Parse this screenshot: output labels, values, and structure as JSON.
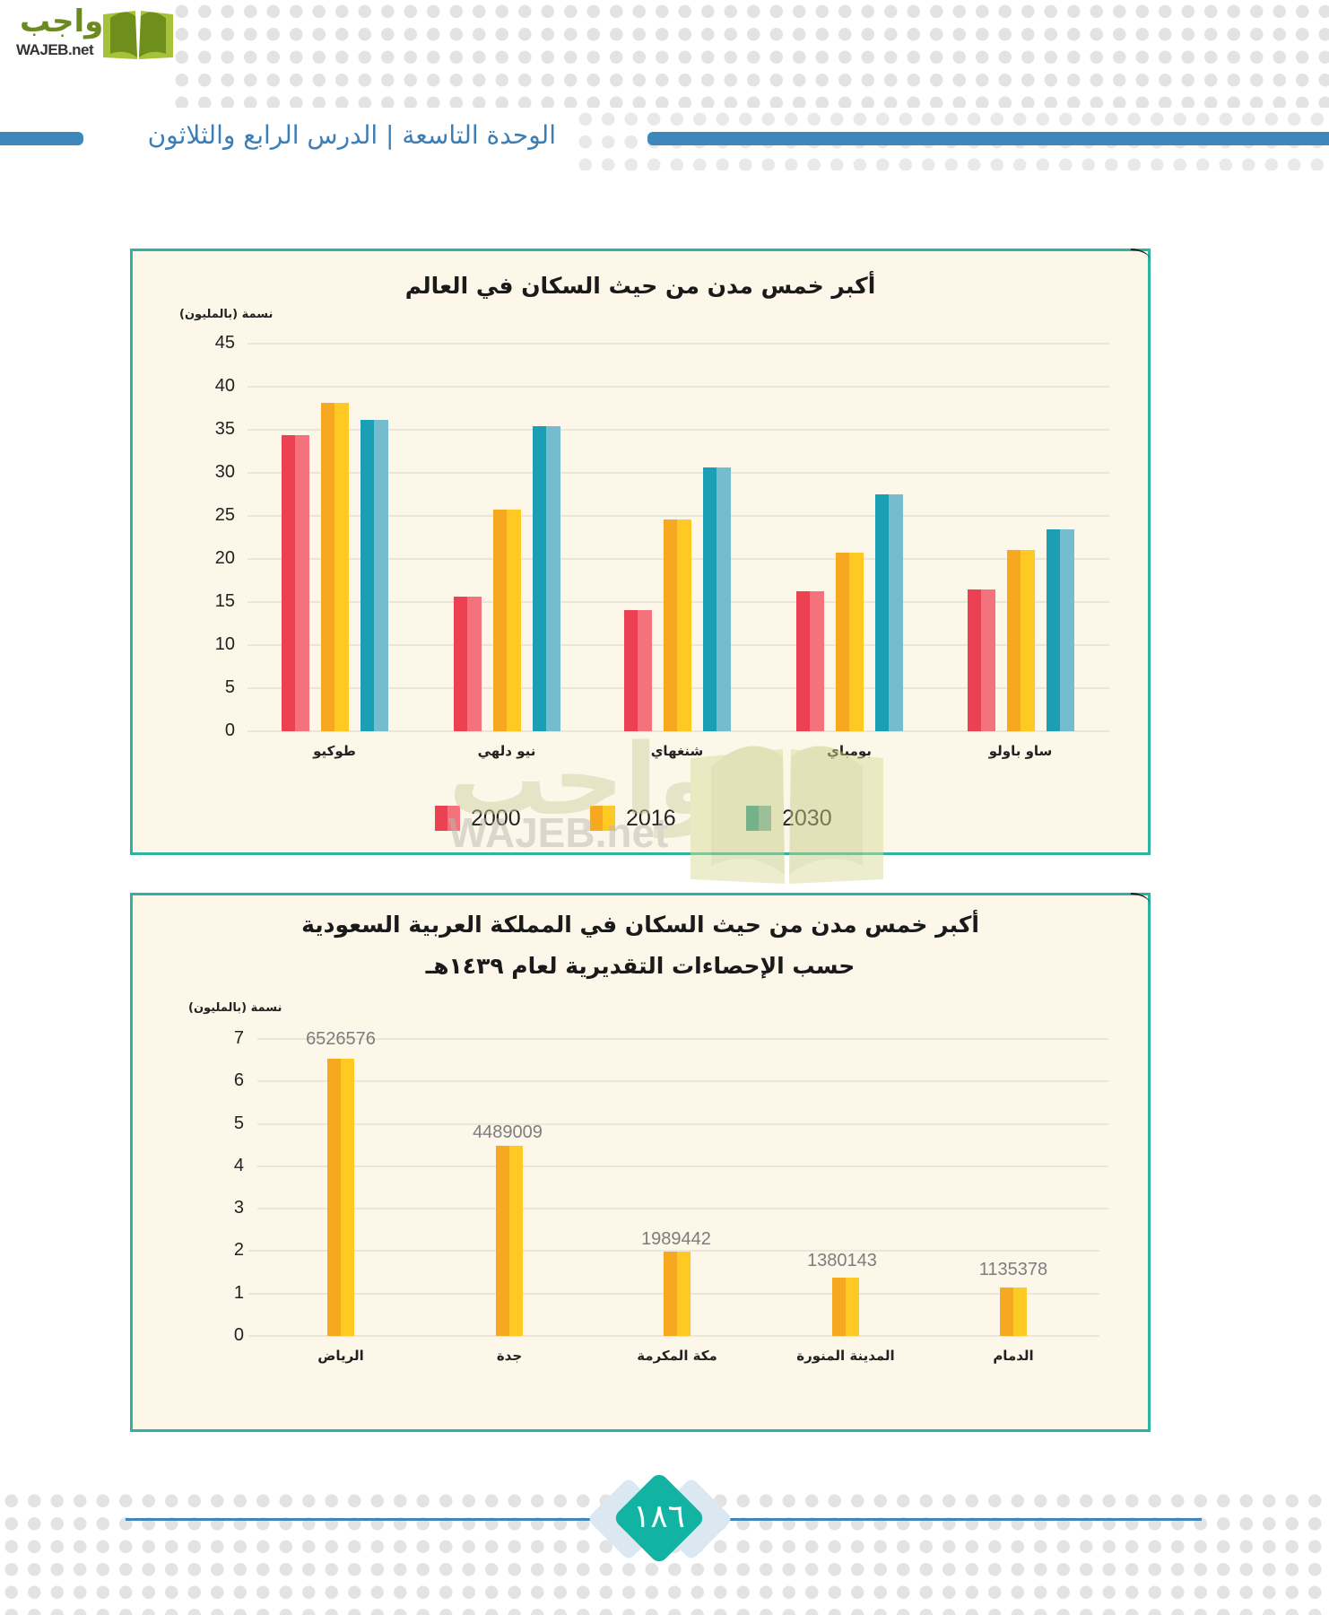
{
  "header": {
    "logo_arabic": "واجب",
    "logo_latin": "WAJEB.net",
    "unit_lesson_title": "الوحدة التاسعة | الدرس الرابع والثلاثون"
  },
  "chart1": {
    "title": "أكبر خمس مدن من حيث السكان في العالم",
    "ylabel": "نسمة (بالمليون)",
    "yticks": [
      "45",
      "40",
      "35",
      "30",
      "25",
      "20",
      "15",
      "10",
      "5",
      "0"
    ],
    "categories": [
      "طوكيو",
      "نيو دلهي",
      "شنغهاي",
      "بومباي",
      "ساو باولو"
    ],
    "legend": [
      "2000",
      "2016",
      "2030"
    ]
  },
  "chart2": {
    "title_line1": "أكبر خمس مدن من حيث السكان في المملكة العربية السعودية",
    "title_line2": "حسب الإحصاءات التقديرية لعام ١٤٣٩هـ",
    "ylabel": "نسمة (بالمليون)",
    "yticks": [
      "7",
      "6",
      "5",
      "4",
      "3",
      "2",
      "1",
      "0"
    ],
    "categories": [
      "الرياض",
      "جدة",
      "مكة المكرمة",
      "المدينة المنورة",
      "الدمام"
    ],
    "value_labels": [
      "6526576",
      "4489009",
      "1989442",
      "1380143",
      "1135378"
    ]
  },
  "watermark": {
    "arabic": "واجب",
    "latin": "WAJEB.net"
  },
  "footer": {
    "page_number": "١٨٦"
  },
  "colors": {
    "series_2000": "#ec4152",
    "series_2016": "#f7a821",
    "series_2030": "#1a9fb5",
    "chart_border": "#2fb3a1",
    "chart_bg": "#fdf7ea",
    "header_blue": "#3d87bd",
    "page_badge": "#13b3a3"
  },
  "chart_data": [
    {
      "type": "bar",
      "title": "أكبر خمس مدن من حيث السكان في العالم",
      "xlabel": "",
      "ylabel": "نسمة (بالمليون)",
      "ylim": [
        0,
        45
      ],
      "yticks": [
        0,
        5,
        10,
        15,
        20,
        25,
        30,
        35,
        40,
        45
      ],
      "grid": true,
      "legend_position": "bottom",
      "categories": [
        "طوكيو",
        "نيو دلهي",
        "شنغهاي",
        "بومباي",
        "ساو باولو"
      ],
      "series": [
        {
          "name": "2000",
          "values": [
            34.4,
            15.6,
            14.1,
            16.3,
            16.5
          ]
        },
        {
          "name": "2016",
          "values": [
            38.1,
            25.7,
            24.6,
            20.7,
            21.0
          ]
        },
        {
          "name": "2030",
          "values": [
            36.1,
            35.4,
            30.6,
            27.5,
            23.4
          ]
        }
      ]
    },
    {
      "type": "bar",
      "title": "أكبر خمس مدن من حيث السكان في المملكة العربية السعودية حسب الإحصاءات التقديرية لعام ١٤٣٩هـ",
      "xlabel": "",
      "ylabel": "نسمة (بالمليون)",
      "ylim": [
        0,
        7
      ],
      "yticks": [
        0,
        1,
        2,
        3,
        4,
        5,
        6,
        7
      ],
      "grid": true,
      "categories": [
        "الرياض",
        "جدة",
        "مكة المكرمة",
        "المدينة المنورة",
        "الدمام"
      ],
      "values": [
        6526576,
        4489009,
        1989442,
        1380143,
        1135378
      ],
      "values_millions": [
        6.53,
        4.49,
        1.99,
        1.38,
        1.14
      ]
    }
  ]
}
